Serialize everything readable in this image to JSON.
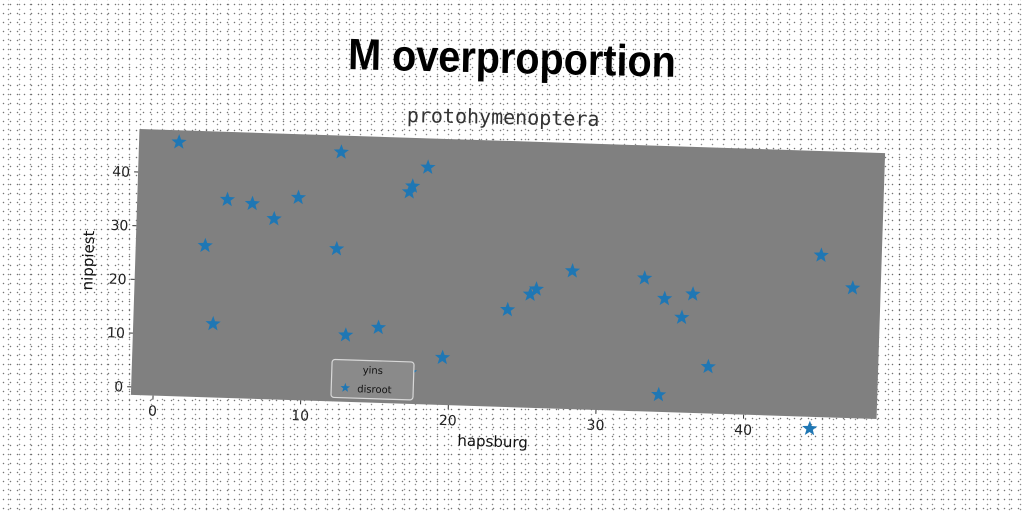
{
  "header": {
    "title": "M overproportion"
  },
  "chart_data": {
    "type": "scatter",
    "title": "protohymenoptera",
    "xlabel": "hapsburg",
    "ylabel": "nippiest",
    "xlim": [
      -1.5,
      49
    ],
    "ylim": [
      -1.5,
      48
    ],
    "xticks": [
      0,
      10,
      20,
      30,
      40
    ],
    "yticks": [
      0,
      10,
      20,
      30,
      40
    ],
    "grid": false,
    "legend": {
      "title": "yins",
      "placement": "bottom-center"
    },
    "colors": {
      "background": "#808080",
      "marker": "#1f77b4"
    },
    "series": [
      {
        "name": "disroot",
        "marker": "star",
        "points": [
          [
            1.2,
            45.8
          ],
          [
            3.2,
            26.7
          ],
          [
            3.9,
            12.2
          ],
          [
            4.6,
            35.4
          ],
          [
            6.3,
            34.8
          ],
          [
            7.8,
            32.1
          ],
          [
            9.4,
            36.2
          ],
          [
            12.1,
            26.9
          ],
          [
            12.2,
            44.9
          ],
          [
            12.9,
            10.9
          ],
          [
            15.1,
            12.5
          ],
          [
            16.9,
            37.9
          ],
          [
            17.1,
            39.0
          ],
          [
            17.3,
            4.3
          ],
          [
            18.1,
            42.6
          ],
          [
            19.5,
            7.3
          ],
          [
            23.8,
            16.6
          ],
          [
            25.3,
            19.6
          ],
          [
            25.7,
            20.6
          ],
          [
            28.1,
            24.2
          ],
          [
            33.0,
            23.3
          ],
          [
            34.2,
            1.7
          ],
          [
            34.4,
            19.6
          ],
          [
            35.6,
            16.2
          ],
          [
            36.3,
            20.6
          ],
          [
            37.5,
            7.2
          ],
          [
            44.5,
            -3.7
          ],
          [
            44.9,
            28.6
          ],
          [
            47.1,
            22.7
          ]
        ]
      }
    ]
  }
}
